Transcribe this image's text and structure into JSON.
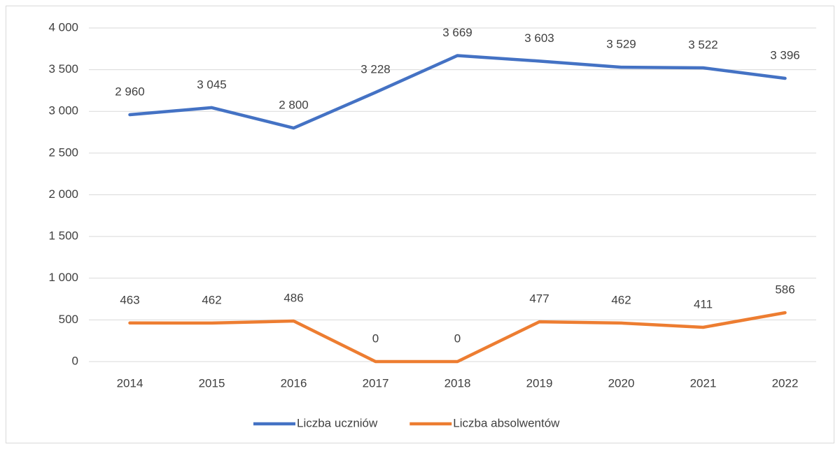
{
  "chart_data": {
    "type": "line",
    "categories": [
      "2014",
      "2015",
      "2016",
      "2017",
      "2018",
      "2019",
      "2020",
      "2021",
      "2022"
    ],
    "series": [
      {
        "name": "Liczba uczniów",
        "color": "#4472c4",
        "values": [
          2960,
          3045,
          2800,
          3228,
          3669,
          3603,
          3529,
          3522,
          3396
        ],
        "value_labels": [
          "2 960",
          "3 045",
          "2 800",
          "3 228",
          "3 669",
          "3 603",
          "3 529",
          "3 522",
          "3 396"
        ]
      },
      {
        "name": "Liczba absolwentów",
        "color": "#ed7d31",
        "values": [
          463,
          462,
          486,
          0,
          0,
          477,
          462,
          411,
          586
        ]
      }
    ],
    "ylim": [
      0,
      4000
    ],
    "yticks": [
      0,
      500,
      {
        "value": 1000,
        "label": "1 000"
      },
      {
        "value": 1500,
        "label": "1 500"
      },
      {
        "value": 2000,
        "label": "2 000"
      },
      {
        "value": 2500,
        "label": "2 500"
      },
      {
        "value": 3000,
        "label": "3 000"
      },
      {
        "value": 3500,
        "label": "3 500"
      },
      {
        "value": 4000,
        "label": "4 000"
      }
    ],
    "grid": true,
    "legend": "bottom"
  }
}
